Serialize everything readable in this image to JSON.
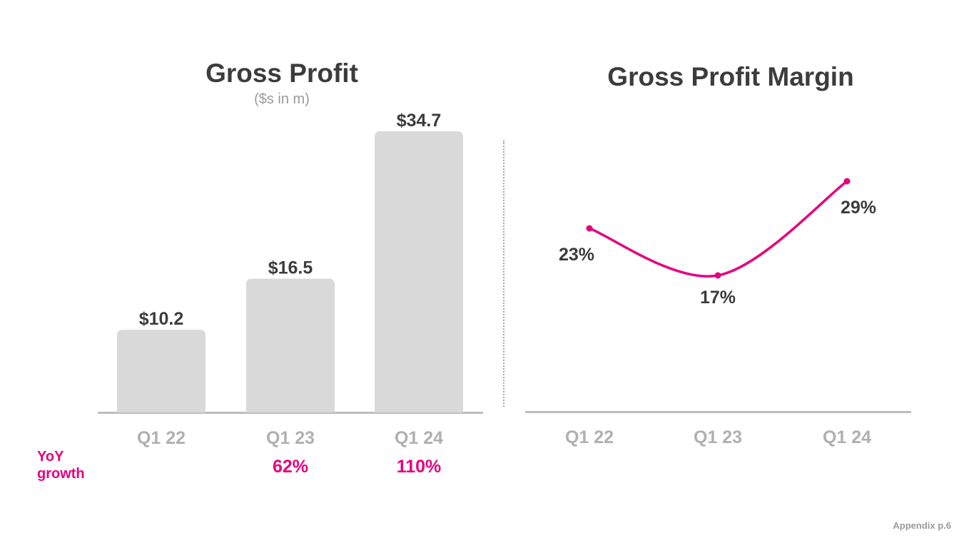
{
  "footer": {
    "note": "Appendix p.6"
  },
  "yoy": {
    "label_line1": "YoY",
    "label_line2": "growth"
  },
  "colors": {
    "accent": "#e6007e",
    "bar": "#d9d9d9",
    "axis": "#bdbdbd",
    "tick_text": "#b0b0b0",
    "title_text": "#3c3c3c"
  },
  "chart_data": [
    {
      "type": "bar",
      "title": "Gross Profit",
      "subtitle": "($s in m)",
      "categories": [
        "Q1 22",
        "Q1 23",
        "Q1 24"
      ],
      "values": [
        10.2,
        16.5,
        34.7
      ],
      "value_labels": [
        "$10.2",
        "$16.5",
        "$34.7"
      ],
      "yoy_growth": [
        "",
        "62%",
        "110%"
      ],
      "ylim": [
        0,
        34.7
      ],
      "grid": false
    },
    {
      "type": "line",
      "title": "Gross Profit Margin",
      "categories": [
        "Q1 22",
        "Q1 23",
        "Q1 24"
      ],
      "values": [
        23,
        17,
        29
      ],
      "value_labels": [
        "23%",
        "17%",
        "29%"
      ],
      "value_label_positions": [
        "below-left",
        "below",
        "below-right"
      ],
      "grid": false
    }
  ]
}
